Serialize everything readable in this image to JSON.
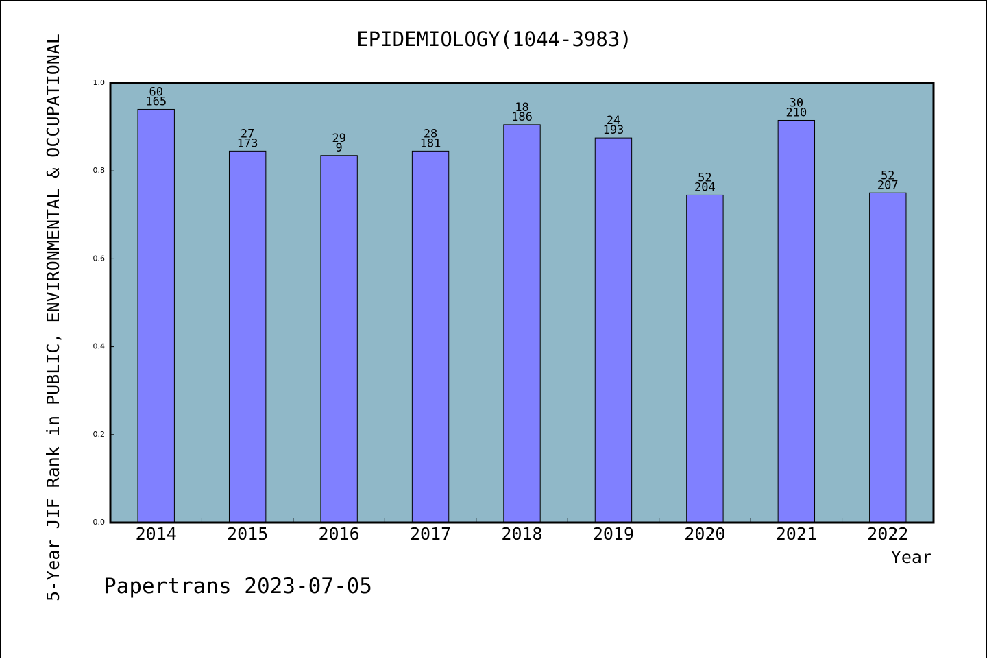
{
  "chart_data": {
    "type": "bar",
    "title": "EPIDEMIOLOGY(1044-3983)",
    "xlabel": "Year",
    "ylabel": "5-Year JIF Rank in PUBLIC, ENVIRONMENTAL & OCCUPATIONAL",
    "ylim": [
      0,
      1
    ],
    "yticks": [
      "0.0",
      "0.2",
      "0.4",
      "0.6",
      "0.8",
      "1.0"
    ],
    "categories": [
      "2014",
      "2015",
      "2016",
      "2017",
      "2018",
      "2019",
      "2020",
      "2021",
      "2022"
    ],
    "values": [
      0.94,
      0.845,
      0.835,
      0.845,
      0.905,
      0.875,
      0.745,
      0.915,
      0.75
    ],
    "rank_labels": [
      "60",
      "27",
      "29",
      "28",
      "18",
      "24",
      "52",
      "30",
      "52"
    ],
    "total_labels": [
      "165",
      "173",
      "9",
      "181",
      "186",
      "193",
      "204",
      "210",
      "207"
    ],
    "colors": {
      "plot_bg": "#90b8c8",
      "bar": "#8080ff",
      "bar_edge": "#000000"
    },
    "grid": false
  },
  "footer": {
    "credit": "Papertrans 2023-07-05"
  }
}
